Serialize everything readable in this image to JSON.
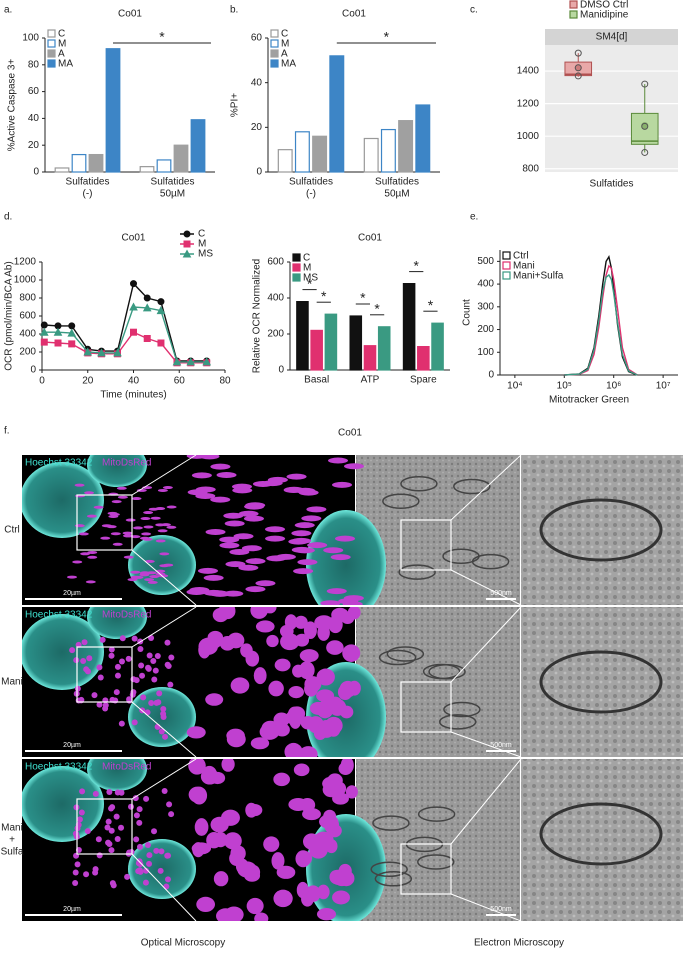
{
  "chart_data": [
    {
      "type": "bar",
      "panel": "a.",
      "title": "Co01",
      "ylabel": "%Active Caspase 3+",
      "categories": [
        [
          "Sulfatides",
          "(-)"
        ],
        [
          "Sulfatides",
          "50µM"
        ]
      ],
      "series": [
        {
          "name": "C",
          "color": "#ffffff",
          "stroke": "#999999",
          "values": [
            3,
            4
          ]
        },
        {
          "name": "M",
          "color": "#ffffff",
          "stroke": "#3d85c6",
          "values": [
            13,
            9
          ]
        },
        {
          "name": "A",
          "color": "#a0a0a0",
          "stroke": "#a0a0a0",
          "values": [
            13,
            20
          ]
        },
        {
          "name": "MA",
          "color": "#3d85c6",
          "stroke": "#3d85c6",
          "values": [
            92,
            39
          ]
        }
      ],
      "ylim": [
        0,
        100
      ],
      "yticks": [
        0,
        20,
        40,
        60,
        80,
        100
      ],
      "legend": "top-left",
      "annotations": [
        "*"
      ]
    },
    {
      "type": "bar",
      "panel": "b.",
      "title": "Co01",
      "ylabel": "%PI+",
      "categories": [
        [
          "Sulfatides",
          "(-)"
        ],
        [
          "Sulfatides",
          "50µM"
        ]
      ],
      "series": [
        {
          "name": "C",
          "color": "#ffffff",
          "stroke": "#999999",
          "values": [
            10,
            15
          ]
        },
        {
          "name": "M",
          "color": "#ffffff",
          "stroke": "#3d85c6",
          "values": [
            18,
            19
          ]
        },
        {
          "name": "A",
          "color": "#a0a0a0",
          "stroke": "#a0a0a0",
          "values": [
            16,
            23
          ]
        },
        {
          "name": "MA",
          "color": "#3d85c6",
          "stroke": "#3d85c6",
          "values": [
            52,
            30
          ]
        }
      ],
      "ylim": [
        0,
        60
      ],
      "yticks": [
        0,
        20,
        40,
        60
      ],
      "legend": "top-left",
      "annotations": [
        "*"
      ]
    },
    {
      "type": "box",
      "panel": "c.",
      "title": "SM4[d]",
      "categories": [
        "Sulfatides"
      ],
      "series": [
        {
          "name": "DMSO Ctrl",
          "color": "#e8a8a8",
          "stroke": "#b05050",
          "min": 1365,
          "q1": 1372,
          "median": 1380,
          "q3": 1455,
          "max": 1510,
          "mean": 1420,
          "points": [
            1370,
            1420,
            1510
          ]
        },
        {
          "name": "Manidipine",
          "color": "#b8d8a0",
          "stroke": "#5a8a3a",
          "min": 900,
          "q1": 950,
          "median": 970,
          "q3": 1140,
          "max": 1320,
          "mean": 1065,
          "points": [
            900,
            1060,
            1320
          ]
        }
      ],
      "ylim": [
        780,
        1560
      ],
      "yticks": [
        800,
        1000,
        1200,
        1400
      ],
      "grid": true,
      "legend": "top"
    },
    {
      "type": "line",
      "panel": "d.",
      "title": "Co01",
      "ylabel": "OCR (pmol/min/BCA Ab)",
      "xlabel": "Time (minutes)",
      "x": [
        1,
        7,
        13,
        20,
        26,
        33,
        40,
        46,
        52,
        59,
        65,
        72
      ],
      "series": [
        {
          "name": "C",
          "color": "#111111",
          "marker": "circle",
          "values": [
            500,
            490,
            490,
            230,
            210,
            210,
            960,
            800,
            760,
            100,
            100,
            100
          ]
        },
        {
          "name": "M",
          "color": "#e0306f",
          "marker": "square",
          "values": [
            310,
            300,
            290,
            190,
            180,
            180,
            420,
            350,
            300,
            80,
            80,
            80
          ]
        },
        {
          "name": "MS",
          "color": "#3a9a82",
          "marker": "triangle",
          "values": [
            420,
            420,
            410,
            200,
            190,
            190,
            700,
            690,
            660,
            90,
            90,
            90
          ]
        }
      ],
      "xlim": [
        0,
        80
      ],
      "xticks": [
        0,
        20,
        40,
        60,
        80
      ],
      "ylim": [
        0,
        1200
      ],
      "yticks": [
        0,
        200,
        400,
        600,
        800,
        1000,
        1200
      ],
      "legend": "top-right"
    },
    {
      "type": "bar",
      "title": "Co01",
      "ylabel": "Relative OCR Normalized",
      "categories": [
        [
          "Basal"
        ],
        [
          "ATP"
        ],
        [
          "Spare"
        ]
      ],
      "series": [
        {
          "name": "C",
          "color": "#111111",
          "stroke": "#111111",
          "values": [
            380,
            300,
            480
          ]
        },
        {
          "name": "M",
          "color": "#e0306f",
          "stroke": "#e0306f",
          "values": [
            220,
            135,
            130
          ]
        },
        {
          "name": "MS",
          "color": "#3a9a82",
          "stroke": "#3a9a82",
          "values": [
            310,
            240,
            260
          ]
        }
      ],
      "ylim": [
        0,
        600
      ],
      "yticks": [
        0,
        200,
        400,
        600
      ],
      "legend": "top-left",
      "annotations": [
        "*",
        "*",
        "*",
        "*",
        "*",
        "*"
      ]
    },
    {
      "type": "line",
      "panel": "e.",
      "ylabel": "Count",
      "xlabel": "Mitotracker Green",
      "xscale": "log",
      "x": [
        100000,
        200000,
        300000,
        400000,
        500000,
        600000,
        700000,
        800000,
        900000,
        1000000,
        1200000,
        1500000,
        2000000,
        3000000
      ],
      "series": [
        {
          "name": "Ctrl",
          "color": "#111111",
          "values": [
            0,
            5,
            30,
            120,
            260,
            400,
            500,
            520,
            470,
            380,
            220,
            80,
            15,
            0
          ]
        },
        {
          "name": "Mani",
          "color": "#e0306f",
          "values": [
            0,
            3,
            20,
            90,
            210,
            340,
            440,
            480,
            470,
            420,
            290,
            120,
            25,
            0
          ]
        },
        {
          "name": "Mani+Sulfa",
          "color": "#3a9a82",
          "values": [
            0,
            4,
            25,
            110,
            240,
            370,
            430,
            440,
            420,
            360,
            230,
            90,
            18,
            0
          ]
        }
      ],
      "xlim": [
        5000,
        20000000
      ],
      "xticks": [
        {
          "value": 10000,
          "label": "10⁴"
        },
        {
          "value": 100000,
          "label": "10⁵"
        },
        {
          "value": 1000000,
          "label": "10⁶"
        },
        {
          "value": 10000000,
          "label": "10⁷"
        }
      ],
      "ylim": [
        0,
        550
      ],
      "yticks": [
        0,
        100,
        200,
        300,
        400,
        500
      ],
      "legend": "top-left"
    }
  ],
  "microscopy": {
    "panel": "f.",
    "title": "Co01",
    "stains": [
      "Hoechst 33342",
      "MitoDsRed"
    ],
    "rows": [
      {
        "label": [
          "Ctrl"
        ]
      },
      {
        "label": [
          "Mani"
        ]
      },
      {
        "label": [
          "Mani",
          "+",
          "Sulfa"
        ]
      }
    ],
    "scale_bars": [
      "20µm",
      "500nm"
    ],
    "footer": [
      "Optical Microscopy",
      "Electron Microscopy"
    ]
  }
}
